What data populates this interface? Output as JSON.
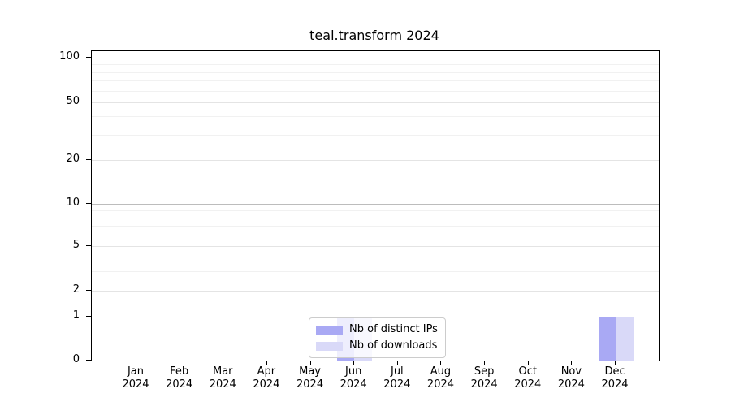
{
  "chart_data": {
    "type": "bar",
    "title": "teal.transform 2024",
    "categories": [
      "Jan",
      "Feb",
      "Mar",
      "Apr",
      "May",
      "Jun",
      "Jul",
      "Aug",
      "Sep",
      "Oct",
      "Nov",
      "Dec"
    ],
    "category_year": "2024",
    "series": [
      {
        "name": "Nb of distinct IPs",
        "color": "#a9a9f4",
        "values": [
          0,
          0,
          0,
          0,
          0,
          1,
          0,
          0,
          0,
          0,
          0,
          1
        ]
      },
      {
        "name": "Nb of downloads",
        "color": "#d9d9f8",
        "values": [
          0,
          0,
          0,
          0,
          0,
          1,
          0,
          0,
          0,
          0,
          0,
          1
        ]
      }
    ],
    "xlabel": "",
    "ylabel": "",
    "ylim": [
      0,
      100
    ],
    "yscale": "symlog",
    "yticks": [
      0,
      1,
      2,
      5,
      10,
      20,
      50,
      100
    ],
    "grid": true,
    "legend_position": "inside-bottom-center",
    "colors": {
      "axis": "#000000",
      "major_gridline": "#bcbcbc",
      "minor_gridline": "#f1f1f1",
      "legend_border": "#cccccc"
    }
  }
}
